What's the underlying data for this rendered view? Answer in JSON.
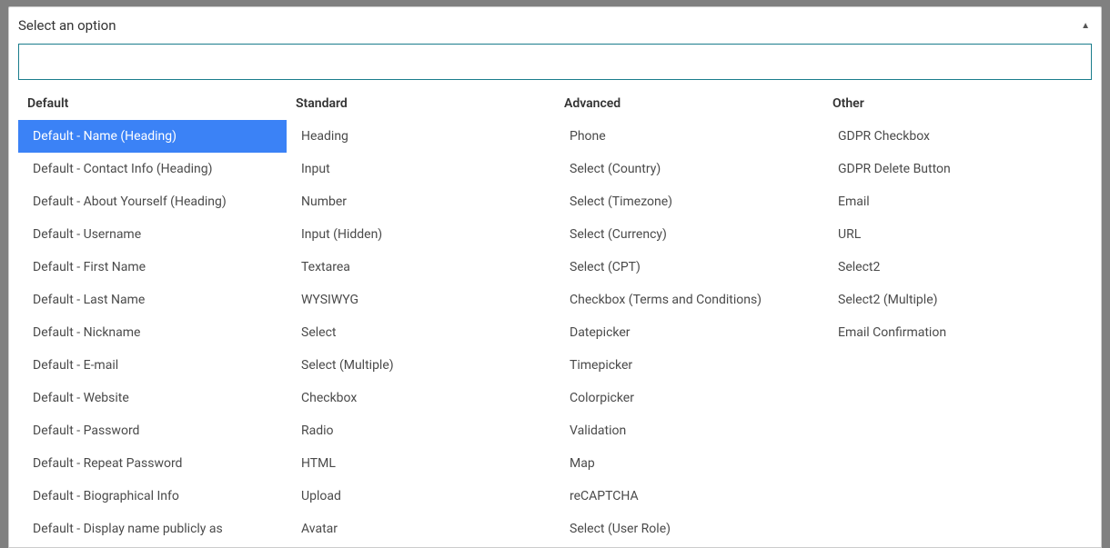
{
  "header": {
    "label": "Select an option"
  },
  "search": {
    "value": "",
    "placeholder": ""
  },
  "highlighted_index": 0,
  "columns": [
    {
      "header": "Default",
      "options": [
        "Default - Name (Heading)",
        "Default - Contact Info (Heading)",
        "Default - About Yourself (Heading)",
        "Default - Username",
        "Default - First Name",
        "Default - Last Name",
        "Default - Nickname",
        "Default - E-mail",
        "Default - Website",
        "Default - Password",
        "Default - Repeat Password",
        "Default - Biographical Info",
        "Default - Display name publicly as"
      ]
    },
    {
      "header": "Standard",
      "options": [
        "Heading",
        "Input",
        "Number",
        "Input (Hidden)",
        "Textarea",
        "WYSIWYG",
        "Select",
        "Select (Multiple)",
        "Checkbox",
        "Radio",
        "HTML",
        "Upload",
        "Avatar"
      ]
    },
    {
      "header": "Advanced",
      "options": [
        "Phone",
        "Select (Country)",
        "Select (Timezone)",
        "Select (Currency)",
        "Select (CPT)",
        "Checkbox (Terms and Conditions)",
        "Datepicker",
        "Timepicker",
        "Colorpicker",
        "Validation",
        "Map",
        "reCAPTCHA",
        "Select (User Role)"
      ]
    },
    {
      "header": "Other",
      "options": [
        "GDPR Checkbox",
        "GDPR Delete Button",
        "Email",
        "URL",
        "Select2",
        "Select2 (Multiple)",
        "Email Confirmation"
      ]
    }
  ],
  "colors": {
    "page_bg": "#808080",
    "panel_bg": "#ffffff",
    "panel_border": "#cccccc",
    "search_border": "#1a7d8c",
    "text_primary": "#333333",
    "text_option": "#4a4a4a",
    "highlight_bg": "#3b82f6",
    "highlight_text": "#ffffff"
  }
}
